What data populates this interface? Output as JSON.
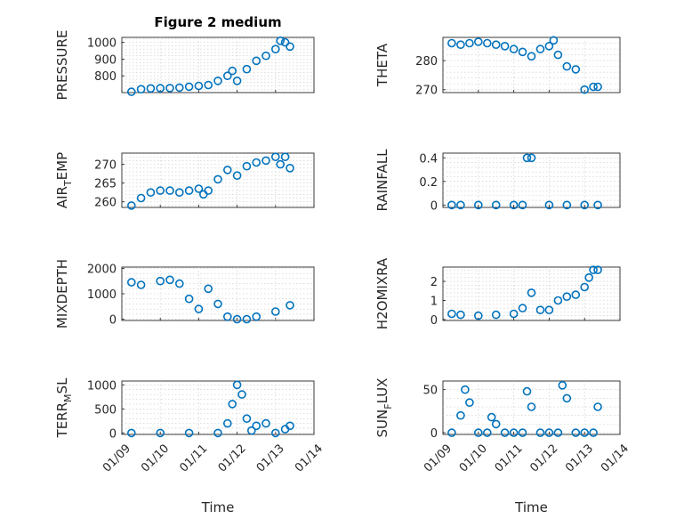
{
  "figure": {
    "title": "Figure 2 medium"
  },
  "chart_data": [
    {
      "type": "scatter",
      "id": "pressure",
      "title": "Figure 2 medium",
      "ylabel": "PRESSURE",
      "xlabel": "",
      "ylim": [
        700,
        1030
      ],
      "yticks": [
        800,
        900,
        1000
      ],
      "show_xticks": false,
      "x": [
        "01/09 06:00",
        "01/09 12:00",
        "01/09 18:00",
        "01/10 00:00",
        "01/10 06:00",
        "01/10 12:00",
        "01/10 18:00",
        "01/11 00:00",
        "01/11 06:00",
        "01/11 12:00",
        "01/11 18:00",
        "01/11 21:00",
        "01/12 00:00",
        "01/12 06:00",
        "01/12 12:00",
        "01/12 18:00",
        "01/13 00:00",
        "01/13 03:00",
        "01/13 06:00",
        "01/13 09:00"
      ],
      "y": [
        705,
        720,
        725,
        726,
        727,
        730,
        735,
        740,
        745,
        770,
        800,
        830,
        770,
        840,
        890,
        920,
        960,
        1010,
        1000,
        975
      ]
    },
    {
      "type": "scatter",
      "id": "theta",
      "ylabel": "THETA",
      "xlabel": "",
      "ylim": [
        269,
        288
      ],
      "yticks": [
        270,
        280
      ],
      "show_xticks": false,
      "x": [
        "01/09 06:00",
        "01/09 12:00",
        "01/09 18:00",
        "01/10 00:00",
        "01/10 06:00",
        "01/10 12:00",
        "01/10 18:00",
        "01/11 00:00",
        "01/11 06:00",
        "01/11 12:00",
        "01/11 18:00",
        "01/12 00:00",
        "01/12 03:00",
        "01/12 06:00",
        "01/12 12:00",
        "01/12 18:00",
        "01/13 00:00",
        "01/13 06:00",
        "01/13 09:00"
      ],
      "y": [
        286,
        285.5,
        286,
        286.5,
        286,
        285.5,
        285,
        284,
        283,
        281.5,
        284,
        285,
        287,
        282,
        278,
        277,
        270,
        271,
        271
      ]
    },
    {
      "type": "scatter",
      "id": "air_temp",
      "ylabel": "AIR_TEMP",
      "ylabel_parts": [
        "AIR",
        "T",
        "EMP"
      ],
      "xlabel": "",
      "ylim": [
        258.5,
        273
      ],
      "yticks": [
        260,
        265,
        270
      ],
      "show_xticks": false,
      "x": [
        "01/09 06:00",
        "01/09 12:00",
        "01/09 18:00",
        "01/10 00:00",
        "01/10 06:00",
        "01/10 12:00",
        "01/10 18:00",
        "01/11 00:00",
        "01/11 03:00",
        "01/11 06:00",
        "01/11 12:00",
        "01/11 18:00",
        "01/12 00:00",
        "01/12 06:00",
        "01/12 12:00",
        "01/12 18:00",
        "01/13 00:00",
        "01/13 03:00",
        "01/13 06:00",
        "01/13 09:00"
      ],
      "y": [
        259,
        261,
        262.5,
        263,
        263,
        262.5,
        263,
        263.5,
        262,
        263,
        266,
        268.5,
        267,
        269.5,
        270.5,
        271,
        272,
        270,
        272,
        269
      ]
    },
    {
      "type": "scatter",
      "id": "rainfall",
      "ylabel": "RAINFALL",
      "xlabel": "",
      "ylim": [
        -0.02,
        0.44
      ],
      "yticks": [
        0,
        0.2,
        0.4
      ],
      "yticklabels": [
        "0",
        "0.2",
        "0.4"
      ],
      "show_xticks": false,
      "x": [
        "01/09 06:00",
        "01/09 12:00",
        "01/10 00:00",
        "01/10 12:00",
        "01/11 00:00",
        "01/11 06:00",
        "01/11 09:00",
        "01/11 12:00",
        "01/12 00:00",
        "01/12 12:00",
        "01/13 00:00",
        "01/13 09:00"
      ],
      "y": [
        0,
        0,
        0,
        0,
        0,
        0,
        0.4,
        0.4,
        0,
        0,
        0,
        0
      ]
    },
    {
      "type": "scatter",
      "id": "mixdepth",
      "ylabel": "MIXDEPTH",
      "xlabel": "",
      "ylim": [
        -50,
        2050
      ],
      "yticks": [
        0,
        1000,
        2000
      ],
      "show_xticks": false,
      "x": [
        "01/09 06:00",
        "01/09 12:00",
        "01/10 00:00",
        "01/10 06:00",
        "01/10 12:00",
        "01/10 18:00",
        "01/11 00:00",
        "01/11 06:00",
        "01/11 12:00",
        "01/11 18:00",
        "01/12 00:00",
        "01/12 06:00",
        "01/12 12:00",
        "01/13 00:00",
        "01/13 09:00"
      ],
      "y": [
        1450,
        1350,
        1500,
        1550,
        1400,
        800,
        400,
        1200,
        600,
        100,
        0,
        0,
        100,
        300,
        550
      ]
    },
    {
      "type": "scatter",
      "id": "h2omixra",
      "ylabel": "H2OMIXRA",
      "xlabel": "",
      "ylim": [
        -0.05,
        2.75
      ],
      "yticks": [
        0,
        1,
        2
      ],
      "show_xticks": false,
      "x": [
        "01/09 06:00",
        "01/09 12:00",
        "01/10 00:00",
        "01/10 12:00",
        "01/11 00:00",
        "01/11 06:00",
        "01/11 12:00",
        "01/11 18:00",
        "01/12 00:00",
        "01/12 06:00",
        "01/12 12:00",
        "01/12 18:00",
        "01/13 00:00",
        "01/13 03:00",
        "01/13 06:00",
        "01/13 09:00"
      ],
      "y": [
        0.3,
        0.25,
        0.2,
        0.25,
        0.3,
        0.6,
        1.4,
        0.5,
        0.5,
        1.0,
        1.2,
        1.3,
        1.7,
        2.2,
        2.6,
        2.6
      ]
    },
    {
      "type": "scatter",
      "id": "terr_msl",
      "ylabel": "TERR_MSL",
      "ylabel_parts": [
        "TERR",
        "M",
        "SL"
      ],
      "xlabel": "Time",
      "ylim": [
        -30,
        1080
      ],
      "yticks": [
        0,
        500,
        1000
      ],
      "show_xticks": true,
      "xticklabels": [
        "01/09",
        "01/10",
        "01/11",
        "01/12",
        "01/13",
        "01/14"
      ],
      "x": [
        "01/09 06:00",
        "01/10 00:00",
        "01/10 18:00",
        "01/11 12:00",
        "01/11 18:00",
        "01/11 21:00",
        "01/12 00:00",
        "01/12 03:00",
        "01/12 06:00",
        "01/12 09:00",
        "01/12 12:00",
        "01/12 18:00",
        "01/13 00:00",
        "01/13 06:00",
        "01/13 09:00"
      ],
      "y": [
        0,
        0,
        0,
        0,
        200,
        600,
        1000,
        800,
        300,
        50,
        150,
        200,
        0,
        80,
        150
      ]
    },
    {
      "type": "scatter",
      "id": "sun_flux",
      "ylabel": "SUN_FLUX",
      "ylabel_parts": [
        "SUN",
        "F",
        "LUX"
      ],
      "xlabel": "Time",
      "ylim": [
        -2,
        60
      ],
      "yticks": [
        0,
        50
      ],
      "show_xticks": true,
      "xticklabels": [
        "01/09",
        "01/10",
        "01/11",
        "01/12",
        "01/13",
        "01/14"
      ],
      "x": [
        "01/09 06:00",
        "01/09 12:00",
        "01/09 15:00",
        "01/09 18:00",
        "01/10 00:00",
        "01/10 06:00",
        "01/10 09:00",
        "01/10 12:00",
        "01/10 18:00",
        "01/11 00:00",
        "01/11 06:00",
        "01/11 09:00",
        "01/11 12:00",
        "01/11 18:00",
        "01/12 00:00",
        "01/12 06:00",
        "01/12 09:00",
        "01/12 12:00",
        "01/12 18:00",
        "01/13 00:00",
        "01/13 06:00",
        "01/13 09:00"
      ],
      "y": [
        0,
        20,
        50,
        35,
        0,
        0,
        18,
        10,
        0,
        0,
        0,
        48,
        30,
        0,
        0,
        0,
        55,
        40,
        0,
        0,
        0,
        30
      ]
    }
  ]
}
